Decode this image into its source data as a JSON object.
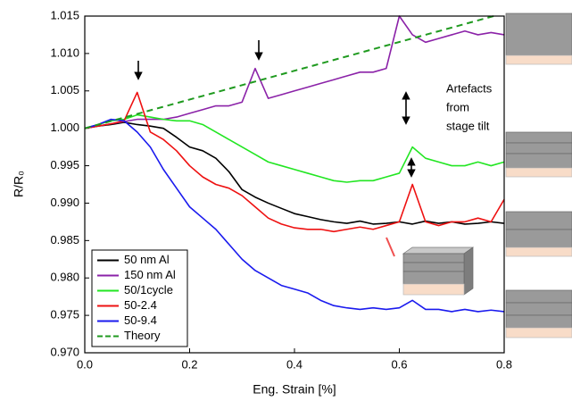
{
  "chart_data": {
    "type": "line",
    "x_label": "Eng. Strain [%]",
    "y_label": "R/R₀",
    "annotation": [
      "Artefacts",
      "from",
      "stage tilt"
    ],
    "x": [
      0,
      0.025,
      0.05,
      0.075,
      0.1,
      0.125,
      0.15,
      0.175,
      0.2,
      0.225,
      0.25,
      0.275,
      0.3,
      0.325,
      0.35,
      0.375,
      0.4,
      0.425,
      0.45,
      0.475,
      0.5,
      0.525,
      0.55,
      0.575,
      0.6,
      0.625,
      0.65,
      0.675,
      0.7,
      0.725,
      0.75,
      0.775,
      0.8
    ],
    "series": [
      {
        "name": "50 nm Al",
        "color": "#000000",
        "values": [
          1.0,
          1.0003,
          1.0005,
          1.0008,
          1.0005,
          1.0003,
          1.0,
          0.9988,
          0.9975,
          0.997,
          0.996,
          0.9942,
          0.9918,
          0.9908,
          0.99,
          0.9893,
          0.9886,
          0.9882,
          0.9878,
          0.9875,
          0.9873,
          0.9876,
          0.9872,
          0.9873,
          0.9875,
          0.9872,
          0.9876,
          0.9873,
          0.9875,
          0.9872,
          0.9873,
          0.9875,
          0.9873
        ]
      },
      {
        "name": "150 nm Al",
        "color": "#8b22a8",
        "values": [
          1.0,
          1.0003,
          1.0006,
          1.0009,
          1.0012,
          1.0012,
          1.0012,
          1.0015,
          1.002,
          1.0025,
          1.003,
          1.003,
          1.0035,
          1.008,
          1.004,
          1.0045,
          1.005,
          1.0055,
          1.006,
          1.0065,
          1.007,
          1.0075,
          1.0075,
          1.008,
          1.015,
          1.0125,
          1.0115,
          1.012,
          1.0125,
          1.013,
          1.0125,
          1.0128,
          1.0125
        ]
      },
      {
        "name": "50/1cycle",
        "color": "#22e622",
        "values": [
          1.0,
          1.0005,
          1.001,
          1.0012,
          1.0018,
          1.0015,
          1.0012,
          1.001,
          1.001,
          1.0005,
          0.9995,
          0.9985,
          0.9975,
          0.9965,
          0.9955,
          0.995,
          0.9945,
          0.994,
          0.9935,
          0.993,
          0.9928,
          0.993,
          0.993,
          0.9935,
          0.994,
          0.9975,
          0.996,
          0.9955,
          0.995,
          0.995,
          0.9955,
          0.995,
          0.9955
        ]
      },
      {
        "name": "50-2.4",
        "color": "#ee1111",
        "values": [
          1.0,
          1.0003,
          1.0006,
          1.001,
          1.0048,
          0.9995,
          0.9985,
          0.997,
          0.995,
          0.9935,
          0.9925,
          0.992,
          0.991,
          0.9895,
          0.988,
          0.9872,
          0.9867,
          0.9865,
          0.9865,
          0.9862,
          0.9865,
          0.9868,
          0.9865,
          0.987,
          0.9875,
          0.9925,
          0.9875,
          0.987,
          0.9875,
          0.9875,
          0.988,
          0.9875,
          0.9905
        ]
      },
      {
        "name": "50-9.4",
        "color": "#1a1aee",
        "values": [
          1.0,
          1.0005,
          1.0012,
          1.001,
          0.9995,
          0.9975,
          0.9945,
          0.992,
          0.9895,
          0.988,
          0.9865,
          0.9845,
          0.9825,
          0.981,
          0.98,
          0.979,
          0.9785,
          0.978,
          0.977,
          0.9763,
          0.976,
          0.9758,
          0.976,
          0.9758,
          0.976,
          0.977,
          0.9758,
          0.9758,
          0.9755,
          0.9758,
          0.9755,
          0.9757,
          0.9755
        ]
      },
      {
        "name": "Theory",
        "color": "#1f9a1f",
        "dashed": true,
        "x": [
          0,
          0.78
        ],
        "values": [
          1.0,
          1.015
        ]
      }
    ],
    "xlim": [
      0,
      0.8
    ],
    "ylim": [
      0.97,
      1.015
    ],
    "xticks": [
      {
        "value": 0,
        "label": "0.0"
      },
      0.2,
      0.4,
      0.6,
      0.8
    ],
    "yticks": [
      {
        "value": 0.97,
        "label": "0.970"
      },
      0.975,
      {
        "value": 0.98,
        "label": "0.980"
      },
      0.985,
      {
        "value": 0.99,
        "label": "0.990"
      },
      0.995,
      {
        "value": 1.0,
        "label": "1.000"
      },
      1.005,
      {
        "value": 1.01,
        "label": "1.010"
      },
      1.015
    ],
    "legend": "lower left",
    "grid": false
  }
}
